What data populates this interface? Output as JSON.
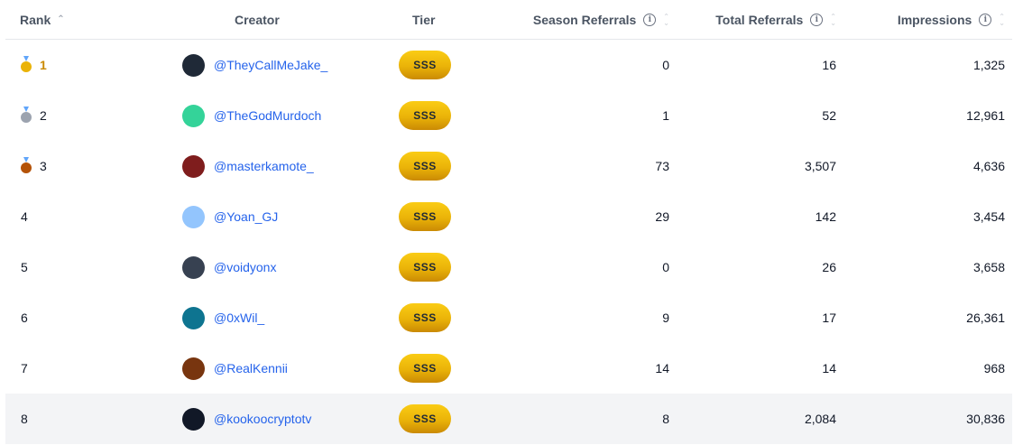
{
  "columns": {
    "rank": "Rank",
    "creator": "Creator",
    "tier": "Tier",
    "season_referrals": "Season Referrals",
    "total_referrals": "Total Referrals",
    "impressions": "Impressions"
  },
  "rows": [
    {
      "rank": "1",
      "medal": "gold",
      "handle": "@TheyCallMeJake_",
      "avatar_color": "#1f2937",
      "tier": "SSS",
      "season_referrals": "0",
      "total_referrals": "16",
      "impressions": "1,325"
    },
    {
      "rank": "2",
      "medal": "silver",
      "handle": "@TheGodMurdoch",
      "avatar_color": "#34d399",
      "tier": "SSS",
      "season_referrals": "1",
      "total_referrals": "52",
      "impressions": "12,961"
    },
    {
      "rank": "3",
      "medal": "bronze",
      "handle": "@masterkamote_",
      "avatar_color": "#7f1d1d",
      "tier": "SSS",
      "season_referrals": "73",
      "total_referrals": "3,507",
      "impressions": "4,636"
    },
    {
      "rank": "4",
      "medal": "",
      "handle": "@Yoan_GJ",
      "avatar_color": "#93c5fd",
      "tier": "SSS",
      "season_referrals": "29",
      "total_referrals": "142",
      "impressions": "3,454"
    },
    {
      "rank": "5",
      "medal": "",
      "handle": "@voidyonx",
      "avatar_color": "#374151",
      "tier": "SSS",
      "season_referrals": "0",
      "total_referrals": "26",
      "impressions": "3,658"
    },
    {
      "rank": "6",
      "medal": "",
      "handle": "@0xWil_",
      "avatar_color": "#0e7490",
      "tier": "SSS",
      "season_referrals": "9",
      "total_referrals": "17",
      "impressions": "26,361"
    },
    {
      "rank": "7",
      "medal": "",
      "handle": "@RealKennii",
      "avatar_color": "#78350f",
      "tier": "SSS",
      "season_referrals": "14",
      "total_referrals": "14",
      "impressions": "968"
    },
    {
      "rank": "8",
      "medal": "",
      "handle": "@kookoocryptotv",
      "avatar_color": "#111827",
      "tier": "SSS",
      "season_referrals": "8",
      "total_referrals": "2,084",
      "impressions": "30,836"
    }
  ],
  "icons": {
    "sort": "sort-icon",
    "info": "info-icon",
    "medal_gold": "gold-medal-icon",
    "medal_silver": "silver-medal-icon",
    "medal_bronze": "bronze-medal-icon"
  },
  "colors": {
    "link": "#2563eb",
    "tier_badge": "#eab308",
    "rank_gold": "#ca8a04",
    "highlight_row": "#f3f4f6"
  }
}
